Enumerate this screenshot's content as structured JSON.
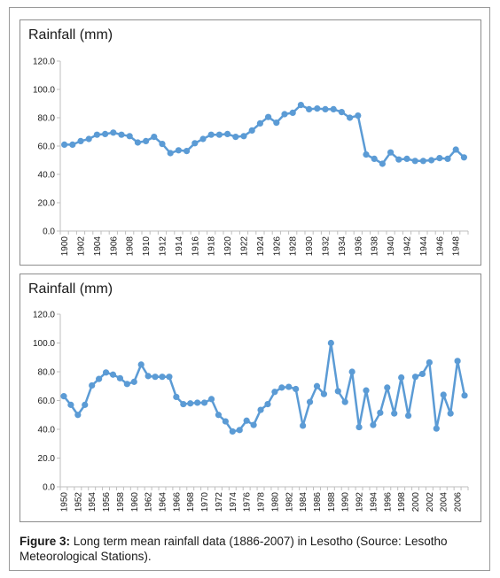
{
  "charts": [
    {
      "type": "line",
      "title": "Rainfall (mm)",
      "ylim": [
        0,
        120
      ],
      "yticks": [
        "0.0",
        "20.0",
        "40.0",
        "60.0",
        "80.0",
        "100.0",
        "120.0"
      ],
      "x_start": 1900,
      "tick_labels": [
        "1900",
        "1902",
        "1904",
        "1906",
        "1908",
        "1910",
        "1912",
        "1914",
        "1916",
        "1918",
        "1920",
        "1922",
        "1924",
        "1926",
        "1928",
        "1930",
        "1932",
        "1934",
        "1936",
        "1938",
        "1940",
        "1942",
        "1944",
        "1946",
        "1948"
      ],
      "values": [
        61,
        61,
        63.5,
        65,
        68,
        68.5,
        69.5,
        68,
        67,
        62.5,
        63.5,
        66.5,
        61.5,
        55,
        57,
        56.5,
        62,
        65,
        68,
        68,
        68.5,
        66.5,
        67,
        71,
        76,
        80.5,
        76.5,
        82.5,
        83.5,
        89,
        86,
        86.5,
        86,
        86,
        84,
        80,
        81.5,
        54,
        51,
        47.5,
        55.5,
        50.5,
        51,
        49.5,
        49.5,
        50,
        51.5,
        51,
        57.5,
        52
      ]
    },
    {
      "type": "line",
      "title": "Rainfall (mm)",
      "ylim": [
        0,
        120
      ],
      "yticks": [
        "0.0",
        "20.0",
        "40.0",
        "60.0",
        "80.0",
        "100.0",
        "120.0"
      ],
      "x_start": 1950,
      "tick_labels": [
        "1950",
        "1952",
        "1954",
        "1956",
        "1958",
        "1960",
        "1962",
        "1964",
        "1966",
        "1968",
        "1970",
        "1972",
        "1974",
        "1976",
        "1978",
        "1980",
        "1982",
        "1984",
        "1986",
        "1988",
        "1990",
        "1992",
        "1994",
        "1996",
        "1998",
        "2000",
        "2002",
        "2004",
        "2006"
      ],
      "values": [
        63,
        57,
        50,
        57,
        70.5,
        75,
        79.5,
        78,
        75.5,
        71.5,
        73,
        85,
        77,
        76.5,
        76.5,
        76.5,
        62.5,
        57.5,
        58,
        58.5,
        58.5,
        61,
        50,
        45.5,
        38.5,
        39.5,
        46,
        43,
        53.5,
        57.5,
        66,
        69,
        69.5,
        68,
        42.5,
        59,
        70,
        64.5,
        100,
        66.5,
        59,
        80,
        41.5,
        67,
        43,
        51.5,
        69,
        51,
        76,
        49.5,
        76.5,
        78.5,
        86.5,
        40.5,
        64,
        51,
        87.5,
        63.5
      ]
    }
  ],
  "caption": {
    "label": "Figure 3:",
    "text": " Long term mean rainfall data (1886-2007) in Lesotho (Source: Lesotho Meteorological Stations)."
  },
  "colors": {
    "series": "#5b9bd5",
    "axis": "#bfbfbf",
    "text": "#1a1a1a"
  }
}
